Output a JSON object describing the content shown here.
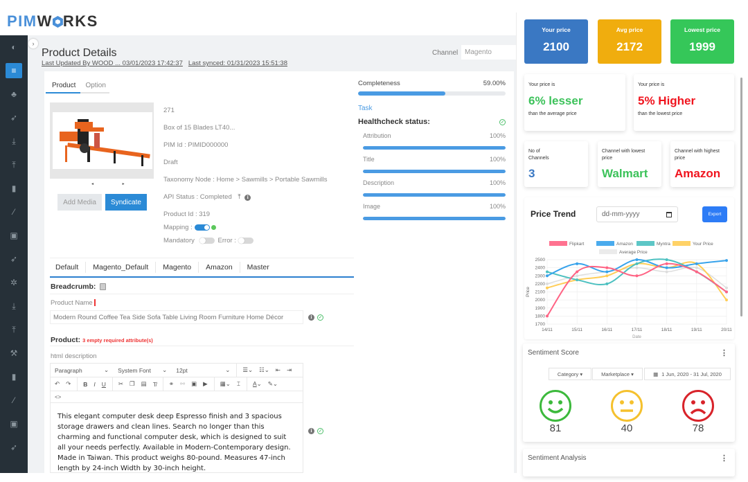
{
  "brand": {
    "pim": "PIM",
    "works_w": "W",
    "works_rest": "RKS"
  },
  "sidebar": {
    "items": [
      {
        "icon": "dashboard-icon",
        "glyph": "◐"
      },
      {
        "icon": "database-icon",
        "glyph": "≡",
        "active": true
      },
      {
        "icon": "sitemap-icon",
        "glyph": "♣"
      },
      {
        "icon": "rocket-icon",
        "glyph": "➶"
      },
      {
        "icon": "download-icon",
        "glyph": "⤓"
      },
      {
        "icon": "upload-icon",
        "glyph": "⤒"
      },
      {
        "icon": "bookmark-icon",
        "glyph": "▮"
      },
      {
        "icon": "pen-icon",
        "glyph": "⁄"
      },
      {
        "icon": "box-icon",
        "glyph": "▣"
      },
      {
        "icon": "rocket-icon",
        "glyph": "➶"
      },
      {
        "icon": "gear-icon",
        "glyph": "✲"
      },
      {
        "icon": "download-icon",
        "glyph": "⤓"
      },
      {
        "icon": "upload-icon",
        "glyph": "⤒"
      },
      {
        "icon": "wrench-icon",
        "glyph": "⚒"
      },
      {
        "icon": "bookmark-icon",
        "glyph": "▮"
      },
      {
        "icon": "pen-icon",
        "glyph": "⁄"
      },
      {
        "icon": "box-icon",
        "glyph": "▣"
      },
      {
        "icon": "rocket-icon",
        "glyph": "➶"
      }
    ]
  },
  "header": {
    "title": "Product Details",
    "last_updated": "Last Updated By  WOOD ...  03/01/2023 17:42:37",
    "last_synced": "Last synced: 01/31/2023 15:51:38",
    "channel_label": "Channel",
    "channel_value": "Magento",
    "toggle_glyph": "›"
  },
  "product_tabs": [
    "Product",
    "Option"
  ],
  "product": {
    "number": "271",
    "name": "Box of 15 Blades LT40...",
    "pim_id": "PIM Id : PIMID000000",
    "state": "Draft",
    "taxonomy": "Taxonomy Node  : Home > Sawmills > Portable Sawmills",
    "api_status": "API Status : Completed",
    "product_id": "Product Id : 319",
    "mapping_label": "Mapping :",
    "mandatory_label": "Mandatory",
    "error_label": "Error :",
    "image_nav": "◂ ▸",
    "add_media": "Add Media",
    "syndicate": "Syndicate"
  },
  "completeness": {
    "label": "Completeness",
    "value": "59.00%",
    "percent": 59,
    "task_link": "Task",
    "healthcheck_label": "Healthcheck status:",
    "items": [
      {
        "label": "Attribution",
        "value": "100%"
      },
      {
        "label": "Title",
        "value": "100%"
      },
      {
        "label": "Description",
        "value": "100%"
      },
      {
        "label": "Image",
        "value": "100%"
      }
    ]
  },
  "channel_tabs": [
    "Default",
    "Magento_Default",
    "Magento",
    "Amazon",
    "Master"
  ],
  "attributes": {
    "breadcrumb_label": "Breadcrumb:",
    "product_name_label": "Product Name",
    "product_name_value": "Modern Round Coffee Tea Side Sofa Table Living Room Furniture Home Décor",
    "product_section": "Product:",
    "empty_required": "3 empty required attribute(s)",
    "html_description_label": "html description"
  },
  "editor": {
    "format": "Paragraph",
    "font": "System Font",
    "size": "12pt",
    "source_code": "<>",
    "content": "This elegant computer desk deep Espresso finish and 3 spacious storage drawers and clean lines. Search no longer than this charming and functional computer desk, which is designed to suit all your needs perfectly. Available in Modern-Contemporary design. Made in Taiwan. This product weighs 80-pound. Measures 47-inch length by 24-inch Width by 30-inch height."
  },
  "pricing": {
    "your_price": {
      "label": "Your price",
      "value": "2100",
      "color": "#3a78c3"
    },
    "avg_price": {
      "label": "Avg price",
      "value": "2172",
      "color": "#f0ad0e"
    },
    "lowest_price": {
      "label": "Lowest price",
      "value": "1999",
      "color": "#35c759"
    },
    "vs_avg": {
      "prefix": "Your price is",
      "value": "6% lesser",
      "suffix": "than the average price",
      "color": "#3cc25a"
    },
    "vs_lowest": {
      "prefix": "Your price is",
      "value": "5% Higher",
      "suffix": "than the lowest price",
      "color": "#f0141e"
    },
    "channels_count": {
      "label1": "No of",
      "label2": "Channels",
      "value": "3"
    },
    "lowest_channel": {
      "label1": "Channel with lowest",
      "label2": "price",
      "value": "Walmart"
    },
    "highest_channel": {
      "label1": "Channel with highest",
      "label2": "price",
      "value": "Amazon"
    }
  },
  "price_trend": {
    "title": "Price Trend",
    "date_placeholder": "dd-mm-yyyy",
    "export": "Export"
  },
  "chart_data": {
    "type": "line",
    "title": "",
    "xlabel": "Date",
    "ylabel": "Price",
    "categories": [
      "14/11",
      "15/11",
      "16/11",
      "17/11",
      "18/11",
      "19/11",
      "20/11"
    ],
    "ylim": [
      1700,
      2500
    ],
    "yticks": [
      1700,
      1800,
      1900,
      2000,
      2100,
      2200,
      2300,
      2400,
      2500
    ],
    "grid": true,
    "legend_position": "top",
    "series": [
      {
        "name": "Flipkart",
        "color": "#ff6384",
        "values": [
          1800,
          2350,
          2400,
          2300,
          2450,
          2350,
          2100
        ]
      },
      {
        "name": "Amazon",
        "color": "#36a2eb",
        "values": [
          2300,
          2450,
          2350,
          2500,
          2400,
          2450,
          2490
        ]
      },
      {
        "name": "Myntra",
        "color": "#4bc0c0",
        "values": [
          2350,
          2250,
          2200,
          2450,
          2500,
          2350,
          2100
        ]
      },
      {
        "name": "Your Price",
        "color": "#ffcd56",
        "values": [
          2150,
          2250,
          2300,
          2450,
          2400,
          2450,
          2000
        ]
      },
      {
        "name": "Average Price",
        "color": "#dddddd",
        "values": [
          2200,
          2300,
          2350,
          2400,
          2350,
          2400,
          2150
        ]
      }
    ]
  },
  "sentiment": {
    "title": "Sentiment Score",
    "category": "Category ▾",
    "marketplace": "Marketplace ▾",
    "date_range": "1 Jun, 2020 - 31 Jul, 2020",
    "scores": [
      {
        "type": "positive",
        "value": "81",
        "color": "#3cb93c"
      },
      {
        "type": "neutral",
        "value": "40",
        "color": "#f5c12e"
      },
      {
        "type": "negative",
        "value": "78",
        "color": "#d8232a"
      }
    ],
    "analysis_title": "Sentiment Analysis",
    "menu_glyph": "⋮"
  }
}
